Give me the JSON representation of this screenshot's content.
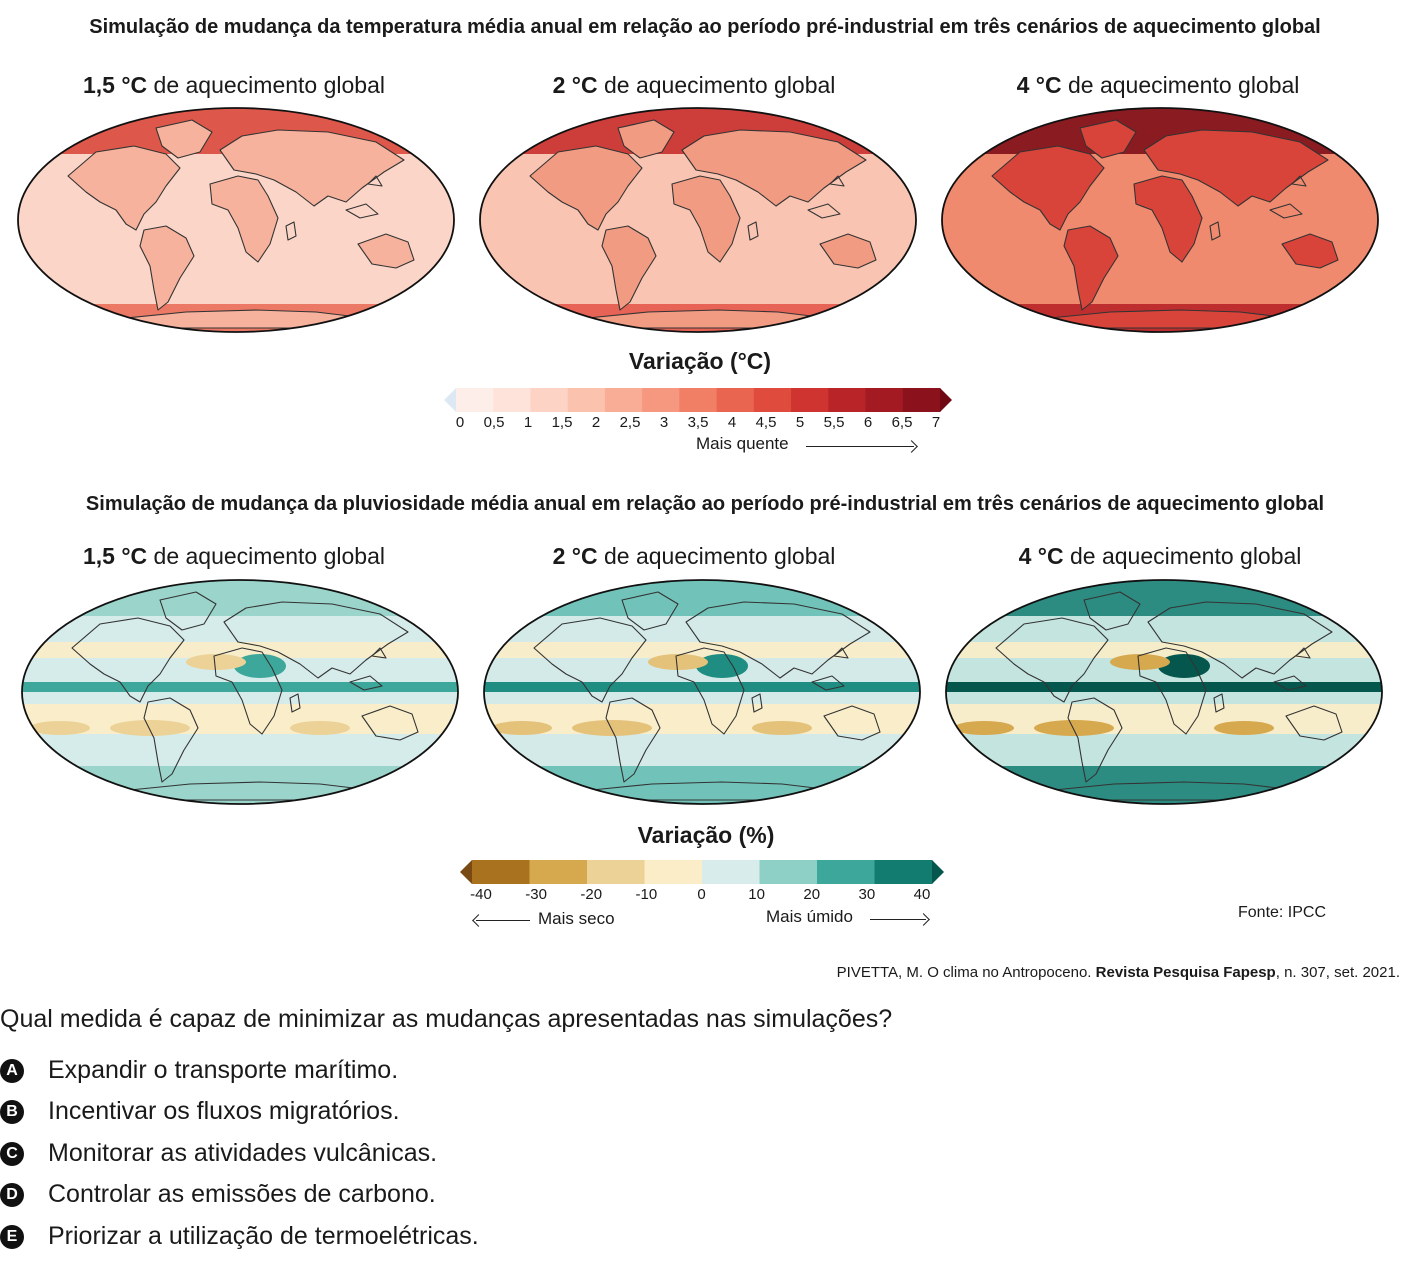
{
  "temperature": {
    "title": "Simulação de mudança da temperatura média anual em relação ao período pré-industrial em três cenários de aquecimento global",
    "maps": [
      {
        "bold": "1,5 °C",
        "rest": " de aquecimento global"
      },
      {
        "bold": "2 °C",
        "rest": " de aquecimento global"
      },
      {
        "bold": "4 °C",
        "rest": " de aquecimento global"
      }
    ],
    "legend": {
      "title": "Variação (°C)",
      "ticks": [
        "0",
        "0,5",
        "1",
        "1,5",
        "2",
        "2,5",
        "3",
        "3,5",
        "4",
        "4,5",
        "5",
        "5,5",
        "6",
        "6,5",
        "7"
      ],
      "note": "Mais quente",
      "colors": [
        "#dce9f5",
        "#fdeee9",
        "#fde3d9",
        "#fcd3c4",
        "#fbc2ae",
        "#f9ad97",
        "#f6977f",
        "#f17f66",
        "#ea654f",
        "#df4b3d",
        "#cf3430",
        "#b92428",
        "#a31a22",
        "#8b111c",
        "#6f0a15"
      ]
    }
  },
  "precipitation": {
    "title": "Simulação de mudança da pluviosidade média anual em relação ao período pré-industrial em três cenários de aquecimento global",
    "maps": [
      {
        "bold": "1,5 °C",
        "rest": " de aquecimento global"
      },
      {
        "bold": "2 °C",
        "rest": " de aquecimento global"
      },
      {
        "bold": "4 °C",
        "rest": " de aquecimento global"
      }
    ],
    "legend": {
      "title": "Variação (%)",
      "ticks": [
        "-40",
        "-30",
        "-20",
        "-10",
        "0",
        "10",
        "20",
        "30",
        "40"
      ],
      "note_left": "Mais seco",
      "note_right": "Mais úmido",
      "colors": [
        "#7a4a14",
        "#a8721e",
        "#d7a94f",
        "#ecd296",
        "#fbedc8",
        "#d8ecec",
        "#8fd0c6",
        "#3ea79b",
        "#137c71",
        "#05564d"
      ]
    },
    "source": "Fonte: IPCC"
  },
  "citation": {
    "before": "PIVETTA, M. O clima no Antropoceno. ",
    "bold": "Revista Pesquisa Fapesp",
    "after": ", n. 307, set. 2021."
  },
  "question": "Qual medida é capaz de minimizar as mudanças apresentadas nas simulações?",
  "options": [
    {
      "letter": "A",
      "text": "Expandir o transporte marítimo."
    },
    {
      "letter": "B",
      "text": "Incentivar os fluxos migratórios."
    },
    {
      "letter": "C",
      "text": "Monitorar as atividades vulcânicas."
    },
    {
      "letter": "D",
      "text": "Controlar as emissões de carbono."
    },
    {
      "letter": "E",
      "text": "Priorizar a utilização de termoelétricas."
    }
  ]
}
